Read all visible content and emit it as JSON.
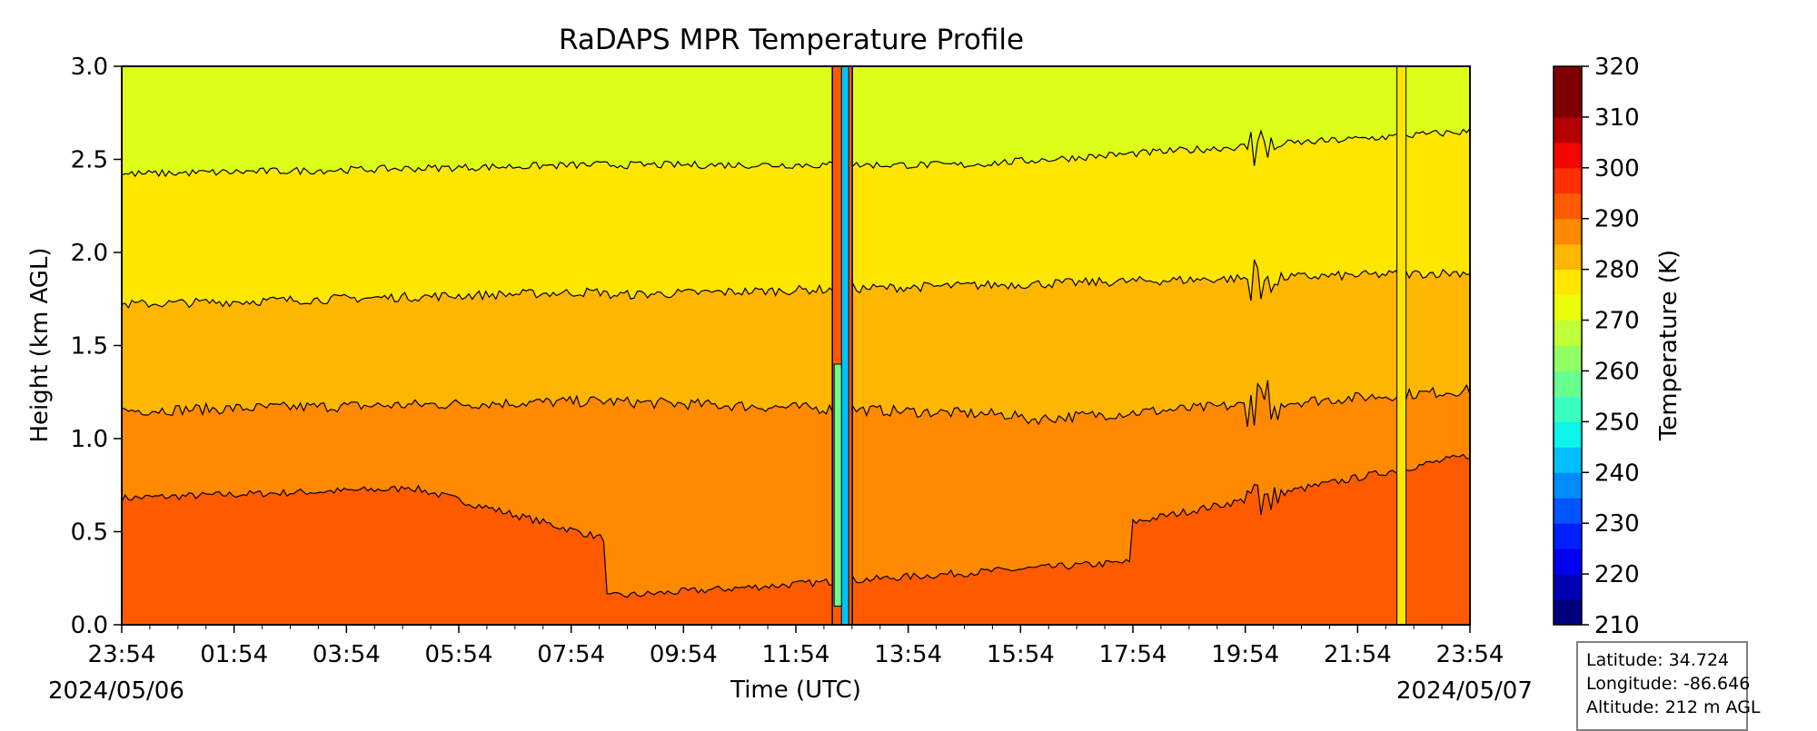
{
  "chart_data": {
    "type": "heatmap",
    "subtype": "filled-contour",
    "title": "RaDAPS MPR Temperature Profile",
    "xlabel": "Time (UTC)",
    "ylabel": "Height (km AGL)",
    "x_tick_labels": [
      "23:54",
      "01:54",
      "03:54",
      "05:54",
      "07:54",
      "09:54",
      "11:54",
      "13:54",
      "15:54",
      "17:54",
      "19:54",
      "21:54",
      "23:54"
    ],
    "x_start_date": "2024/05/06",
    "x_end_date": "2024/05/07",
    "ylim": [
      0.0,
      3.0
    ],
    "y_ticks": [
      0.0,
      0.5,
      1.0,
      1.5,
      2.0,
      2.5,
      3.0
    ],
    "y_tick_labels": [
      "0.0",
      "0.5",
      "1.0",
      "1.5",
      "2.0",
      "2.5",
      "3.0"
    ],
    "colorbar": {
      "label": "Temperature (K)",
      "range": [
        210,
        320
      ],
      "step": 5,
      "tick_labels": [
        "210",
        "220",
        "230",
        "240",
        "250",
        "260",
        "270",
        "280",
        "290",
        "300",
        "310",
        "320"
      ],
      "colors": [
        "#00007f",
        "#0000b3",
        "#0000f1",
        "#0020ff",
        "#0054ff",
        "#008cff",
        "#00c0ff",
        "#0cf4eb",
        "#39ffbe",
        "#66ff90",
        "#90ff66",
        "#beff39",
        "#ebff0c",
        "#ffe600",
        "#ffb600",
        "#ff8900",
        "#ff5a00",
        "#ff3000",
        "#f10800",
        "#b40000",
        "#7f0000",
        "#7f0000"
      ]
    },
    "contour_bands": [
      {
        "range_K": "275-280",
        "color": "#dcff1a",
        "height_km": "above ~2.4-2.6"
      },
      {
        "range_K": "280-285",
        "color": "#ffe600",
        "height_km": "~1.7-2.5"
      },
      {
        "range_K": "285-290",
        "color": "#ffb600",
        "height_km": "~1.1-1.9"
      },
      {
        "range_K": "290-295",
        "color": "#ff8900",
        "height_km": "~0.5-1.3"
      },
      {
        "range_K": "295-300",
        "color": "#ff5a00",
        "height_km": "0-0.7"
      }
    ],
    "notes": "Missing/anomalous data columns near 12:30 and 22:50 UTC"
  },
  "info_box": {
    "latitude": "Latitude: 34.724",
    "longitude": "Longitude: -86.646",
    "altitude": "Altitude: 212 m AGL"
  }
}
